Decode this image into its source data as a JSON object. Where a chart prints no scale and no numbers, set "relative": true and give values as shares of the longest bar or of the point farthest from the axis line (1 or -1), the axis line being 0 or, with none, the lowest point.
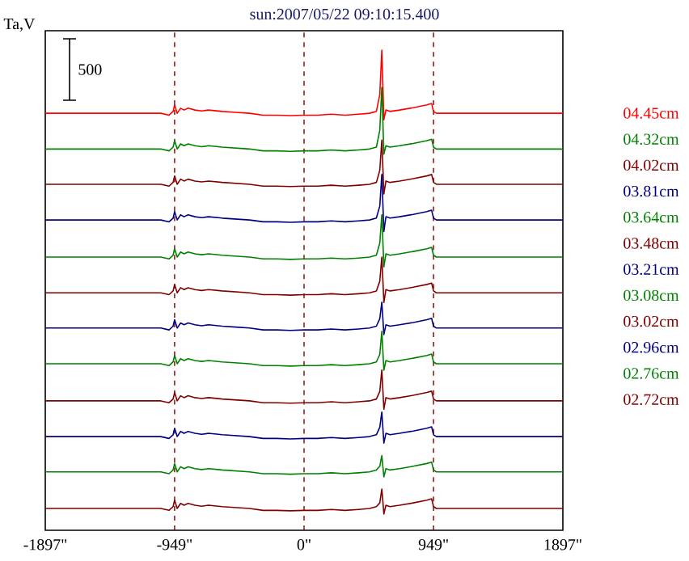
{
  "chart_data": {
    "type": "line",
    "title": "sun:2007/05/22 09:10:15.400",
    "ylabel": "Ta,V",
    "relative": true,
    "legend": "right",
    "annotations": [
      "500"
    ],
    "xlim": [
      -1897,
      1897
    ],
    "xticks": [
      {
        "value": -1897,
        "label": "-1897\""
      },
      {
        "value": -949,
        "label": "-949\""
      },
      {
        "value": 0,
        "label": "0\""
      },
      {
        "value": 949,
        "label": "949\""
      },
      {
        "value": 1897,
        "label": "1897\""
      }
    ],
    "ref_lines": [
      {
        "axis": "x",
        "value": -949,
        "color": "#800000",
        "line_style": "dashed"
      },
      {
        "axis": "x",
        "value": 0,
        "color": "#800000",
        "line_style": "dashed"
      },
      {
        "axis": "x",
        "value": 949,
        "color": "#800000",
        "line_style": "dashed"
      }
    ],
    "x": [
      -1897,
      -1300,
      -1050,
      -990,
      -960,
      -949,
      -930,
      -905,
      -880,
      -850,
      -800,
      -750,
      -700,
      -600,
      -500,
      -400,
      -300,
      -200,
      -100,
      0,
      100,
      200,
      300,
      400,
      480,
      530,
      555,
      570,
      585,
      600,
      630,
      700,
      800,
      900,
      935,
      949,
      970,
      1100,
      1500,
      1897
    ],
    "series": [
      {
        "name": "04.45cm",
        "color": "#ff0000",
        "values": [
          0.864,
          0.864,
          0.864,
          0.86,
          0.868,
          0.882,
          0.864,
          0.875,
          0.871,
          0.875,
          0.871,
          0.869,
          0.871,
          0.868,
          0.866,
          0.864,
          0.86,
          0.86,
          0.859,
          0.86,
          0.86,
          0.862,
          0.86,
          0.862,
          0.864,
          0.868,
          0.904,
          1.0,
          0.85,
          0.871,
          0.868,
          0.871,
          0.876,
          0.882,
          0.885,
          0.868,
          0.864,
          0.864,
          0.864,
          0.864
        ]
      },
      {
        "name": "04.32cm",
        "color": "#008000",
        "values": [
          0.787,
          0.787,
          0.787,
          0.783,
          0.791,
          0.805,
          0.787,
          0.798,
          0.794,
          0.798,
          0.794,
          0.792,
          0.794,
          0.791,
          0.789,
          0.787,
          0.783,
          0.783,
          0.782,
          0.783,
          0.783,
          0.785,
          0.783,
          0.785,
          0.787,
          0.791,
          0.827,
          0.92,
          0.776,
          0.794,
          0.791,
          0.794,
          0.799,
          0.805,
          0.808,
          0.791,
          0.787,
          0.787,
          0.787,
          0.787
        ]
      },
      {
        "name": "04.02cm",
        "color": "#800000",
        "values": [
          0.711,
          0.711,
          0.711,
          0.707,
          0.715,
          0.729,
          0.711,
          0.722,
          0.718,
          0.722,
          0.718,
          0.716,
          0.718,
          0.715,
          0.713,
          0.711,
          0.707,
          0.707,
          0.706,
          0.707,
          0.707,
          0.709,
          0.707,
          0.709,
          0.711,
          0.715,
          0.741,
          0.806,
          0.69,
          0.718,
          0.715,
          0.718,
          0.723,
          0.729,
          0.732,
          0.715,
          0.711,
          0.711,
          0.711,
          0.711
        ]
      },
      {
        "name": "03.81cm",
        "color": "#000080",
        "values": [
          0.634,
          0.634,
          0.634,
          0.63,
          0.638,
          0.652,
          0.634,
          0.645,
          0.641,
          0.645,
          0.641,
          0.639,
          0.641,
          0.638,
          0.636,
          0.634,
          0.63,
          0.63,
          0.629,
          0.63,
          0.63,
          0.632,
          0.63,
          0.632,
          0.634,
          0.638,
          0.664,
          0.732,
          0.609,
          0.641,
          0.638,
          0.641,
          0.646,
          0.652,
          0.655,
          0.638,
          0.634,
          0.634,
          0.634,
          0.634
        ]
      },
      {
        "name": "03.64cm",
        "color": "#008000",
        "values": [
          0.554,
          0.554,
          0.554,
          0.55,
          0.558,
          0.572,
          0.554,
          0.565,
          0.561,
          0.565,
          0.561,
          0.559,
          0.561,
          0.558,
          0.556,
          0.554,
          0.55,
          0.55,
          0.549,
          0.55,
          0.55,
          0.552,
          0.55,
          0.552,
          0.554,
          0.558,
          0.584,
          0.645,
          0.533,
          0.561,
          0.558,
          0.561,
          0.566,
          0.572,
          0.575,
          0.558,
          0.554,
          0.554,
          0.554,
          0.554
        ]
      },
      {
        "name": "03.48cm",
        "color": "#800000",
        "values": [
          0.477,
          0.477,
          0.477,
          0.473,
          0.481,
          0.495,
          0.477,
          0.488,
          0.484,
          0.488,
          0.484,
          0.482,
          0.484,
          0.481,
          0.479,
          0.477,
          0.473,
          0.473,
          0.472,
          0.473,
          0.473,
          0.475,
          0.473,
          0.475,
          0.477,
          0.481,
          0.502,
          0.554,
          0.456,
          0.484,
          0.481,
          0.484,
          0.489,
          0.495,
          0.498,
          0.481,
          0.477,
          0.477,
          0.477,
          0.477
        ]
      },
      {
        "name": "03.21cm",
        "color": "#000080",
        "values": [
          0.401,
          0.401,
          0.401,
          0.397,
          0.405,
          0.419,
          0.401,
          0.412,
          0.408,
          0.412,
          0.408,
          0.406,
          0.408,
          0.405,
          0.403,
          0.401,
          0.397,
          0.397,
          0.396,
          0.397,
          0.397,
          0.399,
          0.397,
          0.399,
          0.401,
          0.405,
          0.421,
          0.457,
          0.387,
          0.408,
          0.405,
          0.408,
          0.413,
          0.419,
          0.422,
          0.405,
          0.401,
          0.401,
          0.401,
          0.401
        ]
      },
      {
        "name": "03.08cm",
        "color": "#008000",
        "values": [
          0.324,
          0.324,
          0.324,
          0.32,
          0.328,
          0.342,
          0.324,
          0.335,
          0.331,
          0.335,
          0.331,
          0.329,
          0.331,
          0.328,
          0.326,
          0.324,
          0.32,
          0.32,
          0.319,
          0.32,
          0.32,
          0.322,
          0.32,
          0.322,
          0.324,
          0.328,
          0.344,
          0.394,
          0.31,
          0.331,
          0.328,
          0.331,
          0.336,
          0.342,
          0.345,
          0.328,
          0.324,
          0.324,
          0.324,
          0.324
        ]
      },
      {
        "name": "03.02cm",
        "color": "#800000",
        "values": [
          0.244,
          0.244,
          0.244,
          0.24,
          0.248,
          0.262,
          0.244,
          0.255,
          0.251,
          0.255,
          0.251,
          0.249,
          0.251,
          0.248,
          0.246,
          0.244,
          0.24,
          0.24,
          0.239,
          0.24,
          0.24,
          0.242,
          0.24,
          0.242,
          0.244,
          0.248,
          0.264,
          0.311,
          0.226,
          0.251,
          0.248,
          0.251,
          0.256,
          0.262,
          0.265,
          0.248,
          0.244,
          0.244,
          0.244,
          0.244
        ]
      },
      {
        "name": "02.96cm",
        "color": "#000080",
        "values": [
          0.167,
          0.167,
          0.167,
          0.163,
          0.171,
          0.185,
          0.167,
          0.178,
          0.174,
          0.178,
          0.174,
          0.172,
          0.174,
          0.171,
          0.169,
          0.167,
          0.163,
          0.163,
          0.162,
          0.163,
          0.163,
          0.165,
          0.163,
          0.165,
          0.167,
          0.171,
          0.187,
          0.22,
          0.153,
          0.174,
          0.171,
          0.174,
          0.179,
          0.185,
          0.188,
          0.171,
          0.167,
          0.167,
          0.167,
          0.167
        ]
      },
      {
        "name": "02.76cm",
        "color": "#008000",
        "values": [
          0.091,
          0.091,
          0.091,
          0.087,
          0.095,
          0.109,
          0.091,
          0.102,
          0.098,
          0.102,
          0.098,
          0.096,
          0.098,
          0.095,
          0.093,
          0.091,
          0.087,
          0.087,
          0.086,
          0.087,
          0.087,
          0.089,
          0.087,
          0.089,
          0.091,
          0.095,
          0.103,
          0.126,
          0.08,
          0.098,
          0.095,
          0.098,
          0.103,
          0.109,
          0.112,
          0.095,
          0.091,
          0.091,
          0.091,
          0.091
        ]
      },
      {
        "name": "02.72cm",
        "color": "#800000",
        "values": [
          0.012,
          0.012,
          0.012,
          0.008,
          0.016,
          0.03,
          0.012,
          0.023,
          0.019,
          0.023,
          0.019,
          0.017,
          0.019,
          0.016,
          0.014,
          0.012,
          0.008,
          0.008,
          0.007,
          0.008,
          0.008,
          0.01,
          0.008,
          0.01,
          0.012,
          0.016,
          0.024,
          0.054,
          0.0,
          0.019,
          0.016,
          0.019,
          0.024,
          0.03,
          0.033,
          0.016,
          0.012,
          0.012,
          0.012,
          0.012
        ]
      }
    ]
  }
}
